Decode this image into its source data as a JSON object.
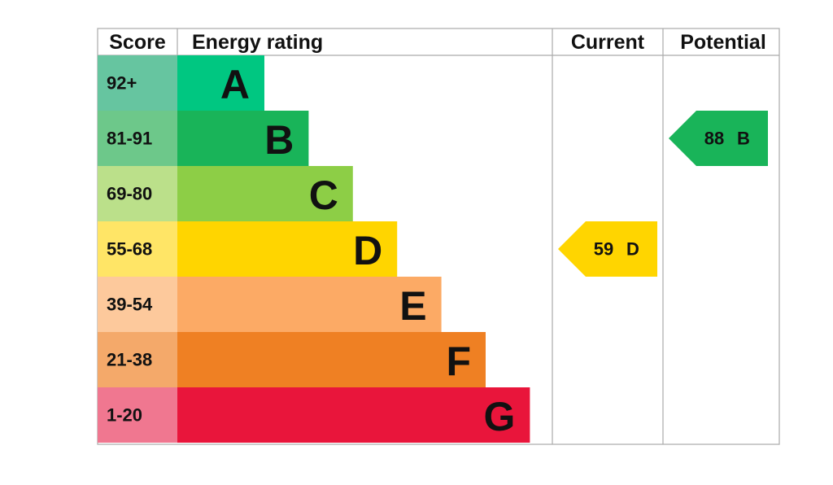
{
  "header": {
    "score": "Score",
    "rating": "Energy rating",
    "current": "Current",
    "potential": "Potential"
  },
  "bands": [
    {
      "score": "92+",
      "letter": "A",
      "color": "#00c781",
      "score_color": "#66c5a0"
    },
    {
      "score": "81-91",
      "letter": "B",
      "color": "#19b459",
      "score_color": "#6dc88a"
    },
    {
      "score": "69-80",
      "letter": "C",
      "color": "#8dce46",
      "score_color": "#bbe08a"
    },
    {
      "score": "55-68",
      "letter": "D",
      "color": "#ffd500",
      "score_color": "#ffe566"
    },
    {
      "score": "39-54",
      "letter": "E",
      "color": "#fcaa65",
      "score_color": "#fdc99c"
    },
    {
      "score": "21-38",
      "letter": "F",
      "color": "#ef8023",
      "score_color": "#f4a96a"
    },
    {
      "score": "1-20",
      "letter": "G",
      "color": "#e9153b",
      "score_color": "#f07790"
    }
  ],
  "current": {
    "score": 59,
    "letter": "D"
  },
  "potential": {
    "score": 88,
    "letter": "B"
  }
}
